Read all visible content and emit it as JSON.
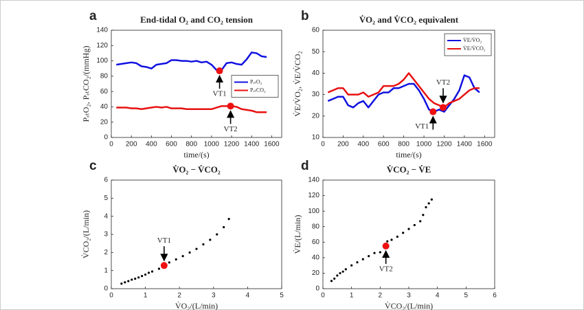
{
  "chart_data": [
    {
      "type": "line",
      "panel": "a",
      "title": "End-tidal O₂ and CO₂ tension",
      "xlabel": "time/(s)",
      "ylabel": "PₑₜO₂, PₑₜCO₂/(mmHg)",
      "xlim": [
        0,
        1700
      ],
      "ylim": [
        0,
        140
      ],
      "xticks": [
        0,
        200,
        400,
        600,
        800,
        1000,
        1200,
        1400,
        1600
      ],
      "yticks": [
        0,
        20,
        40,
        60,
        80,
        100,
        120,
        140
      ],
      "legend": "right",
      "x": [
        50,
        100,
        150,
        200,
        250,
        300,
        350,
        400,
        450,
        500,
        550,
        600,
        650,
        700,
        750,
        800,
        850,
        900,
        950,
        1000,
        1050,
        1100,
        1150,
        1200,
        1250,
        1300,
        1350,
        1400,
        1450,
        1500,
        1550
      ],
      "series": [
        {
          "name": "PₑₜO₂",
          "color": "#1010e0",
          "values": [
            95,
            96,
            97,
            98,
            97,
            93,
            92,
            90,
            95,
            96,
            97,
            101,
            101,
            100,
            100,
            99,
            100,
            98,
            99,
            95,
            88,
            88,
            97,
            98,
            96,
            95,
            102,
            111,
            110,
            106,
            105
          ]
        },
        {
          "name": "PₑₜCO₂",
          "color": "#e81010",
          "values": [
            39,
            39,
            39,
            38,
            38,
            37,
            38,
            39,
            40,
            39,
            40,
            38,
            38,
            38,
            37,
            37,
            37,
            37,
            37,
            37,
            39,
            41,
            41,
            41,
            40,
            37,
            36,
            35,
            33,
            33,
            33
          ]
        }
      ],
      "annotations": [
        {
          "label": "VT1",
          "x": 1080,
          "y": 87,
          "side": "below"
        },
        {
          "label": "VT2",
          "x": 1190,
          "y": 41,
          "side": "below"
        }
      ]
    },
    {
      "type": "line",
      "panel": "b",
      "title": "V̇O₂ and V̇CO₂ equivalent",
      "xlabel": "time/(s)",
      "ylabel": "V̇E/V̇O₂, V̇E/V̇CO₂",
      "xlim": [
        0,
        1700
      ],
      "ylim": [
        10,
        60
      ],
      "xticks": [
        0,
        200,
        400,
        600,
        800,
        1000,
        1200,
        1400,
        1600
      ],
      "yticks": [
        10,
        20,
        30,
        40,
        50,
        60
      ],
      "legend": "upper right",
      "x": [
        50,
        100,
        150,
        200,
        250,
        300,
        350,
        400,
        450,
        500,
        550,
        600,
        650,
        700,
        750,
        800,
        850,
        900,
        950,
        1000,
        1050,
        1100,
        1150,
        1200,
        1250,
        1300,
        1350,
        1400,
        1450,
        1500,
        1550
      ],
      "series": [
        {
          "name": "V̇E/V̇O₂",
          "color": "#1010e0",
          "values": [
            27,
            28,
            29,
            29,
            25,
            24,
            26,
            27,
            24,
            27,
            30,
            31,
            31,
            33,
            33,
            34,
            35,
            35,
            32,
            28,
            23,
            22,
            23,
            22,
            25,
            28,
            32,
            39,
            38,
            33,
            31
          ]
        },
        {
          "name": "V̇E/V̇CO₂",
          "color": "#e81010",
          "values": [
            31,
            32,
            33,
            33,
            30,
            30,
            30,
            31,
            29,
            30,
            31,
            34,
            34,
            34,
            35,
            37,
            40,
            37,
            34,
            31,
            28,
            26,
            25,
            24,
            26,
            27,
            28,
            30,
            32,
            33,
            33
          ]
        }
      ],
      "annotations": [
        {
          "label": "VT1",
          "x": 1090,
          "y": 22,
          "side": "below-left"
        },
        {
          "label": "VT2",
          "x": 1190,
          "y": 24,
          "side": "above"
        }
      ]
    },
    {
      "type": "scatter",
      "panel": "c",
      "title": "V̇O₂ − V̇CO₂",
      "xlabel": "V̇O₂/(L/min)",
      "ylabel": "V̇CO₂/(L/min)",
      "xlim": [
        0,
        5
      ],
      "ylim": [
        0,
        6
      ],
      "xticks": [
        0,
        1,
        2,
        3,
        4,
        5
      ],
      "yticks": [
        0,
        1,
        2,
        3,
        4,
        5,
        6
      ],
      "series": [
        {
          "color": "#000000",
          "x": [
            0.3,
            0.4,
            0.5,
            0.6,
            0.7,
            0.8,
            0.9,
            1.0,
            1.1,
            1.2,
            1.4,
            1.7,
            1.9,
            2.1,
            2.3,
            2.5,
            2.7,
            2.9,
            3.1,
            3.3,
            3.45
          ],
          "values": [
            0.28,
            0.35,
            0.42,
            0.5,
            0.55,
            0.62,
            0.7,
            0.78,
            0.88,
            0.95,
            1.1,
            1.45,
            1.62,
            1.8,
            2.0,
            2.2,
            2.45,
            2.7,
            3.0,
            3.4,
            3.85
          ]
        }
      ],
      "annotations": [
        {
          "label": "VT1",
          "x": 1.55,
          "y": 1.28,
          "side": "above"
        }
      ]
    },
    {
      "type": "scatter",
      "panel": "d",
      "title": "V̇CO₂ − V̇E",
      "xlabel": "V̇CO₂/(L/min)",
      "ylabel": "V̇E/(L/min)",
      "xlim": [
        0,
        6
      ],
      "ylim": [
        0,
        140
      ],
      "xticks": [
        0,
        1,
        2,
        3,
        4,
        5,
        6
      ],
      "yticks": [
        0,
        20,
        40,
        60,
        80,
        100,
        120,
        140
      ],
      "series": [
        {
          "color": "#000000",
          "x": [
            0.3,
            0.4,
            0.5,
            0.6,
            0.7,
            0.8,
            1.0,
            1.2,
            1.4,
            1.6,
            1.8,
            2.0,
            2.25,
            2.4,
            2.6,
            2.8,
            3.0,
            3.2,
            3.4,
            3.5,
            3.6,
            3.7,
            3.8
          ],
          "values": [
            10,
            13,
            17,
            20,
            22,
            25,
            30,
            34,
            38,
            42,
            46,
            47,
            61,
            63,
            67,
            72,
            77,
            82,
            87,
            95,
            105,
            110,
            115
          ]
        }
      ],
      "annotations": [
        {
          "label": "VT2",
          "x": 2.2,
          "y": 55,
          "side": "below"
        }
      ]
    }
  ]
}
